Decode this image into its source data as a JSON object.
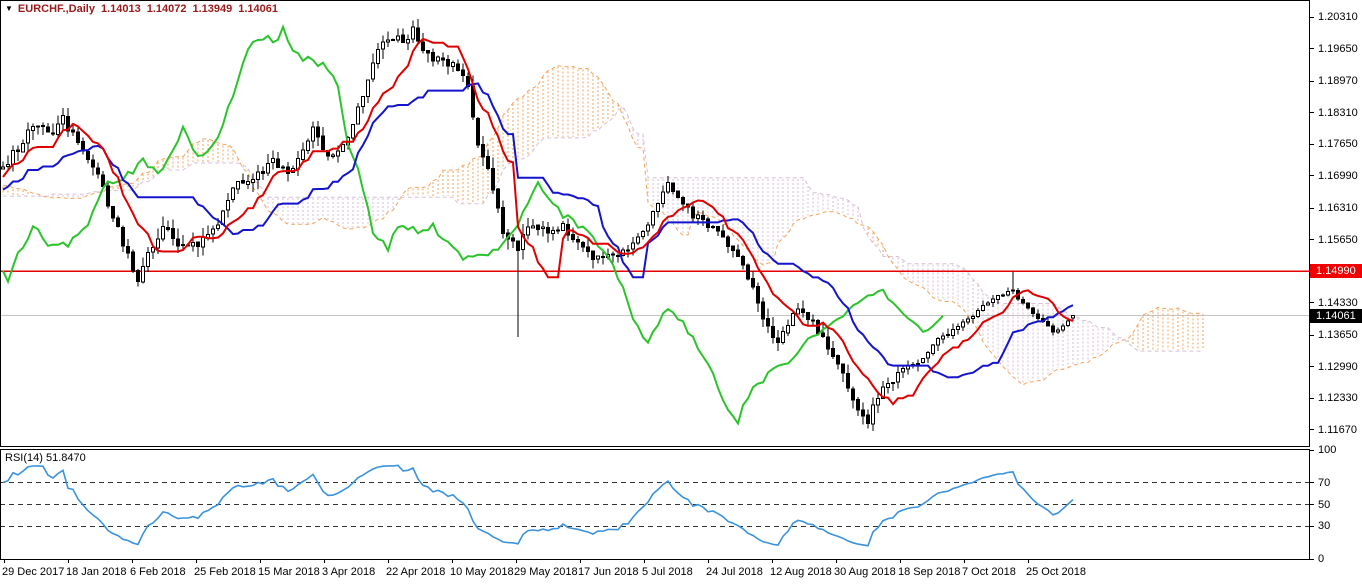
{
  "window": {
    "title": "EURCHF.,Daily",
    "ohlc": {
      "open": "1.14013",
      "high": "1.14072",
      "low": "1.13949",
      "close": "1.14061"
    }
  },
  "rsi": {
    "label": "RSI(14) 51.8470",
    "period": 14,
    "value": 51.847,
    "levels": [
      70,
      50,
      30
    ],
    "scale_labels": [
      "100",
      "70",
      "50",
      "30",
      "0"
    ]
  },
  "price_axis": {
    "labels": [
      "1.20310",
      "1.19650",
      "1.18970",
      "1.18310",
      "1.17650",
      "1.16990",
      "1.16310",
      "1.15650",
      "1.14330",
      "1.13650",
      "1.12990",
      "1.12330",
      "1.11670"
    ],
    "red_level_label": "1.14990",
    "current_price_label": "1.14061"
  },
  "time_axis": {
    "labels": [
      "29 Dec 2017",
      "18 Jan 2018",
      "6 Feb 2018",
      "25 Feb 2018",
      "15 Mar 2018",
      "3 Apr 2018",
      "22 Apr 2018",
      "10 May 2018",
      "29 May 2018",
      "17 Jun 2018",
      "5 Jul 2018",
      "24 Jul 2018",
      "12 Aug 2018",
      "30 Aug 2018",
      "18 Sep 2018",
      "7 Oct 2018",
      "25 Oct 2018"
    ]
  },
  "colors": {
    "header_text": "#9C1A1A",
    "bg": "#FFFFFF",
    "frame": "#000000",
    "grid_line": "#C4C4C4",
    "hline_red": "#E60000",
    "tenkan_red": "#DF0000",
    "kijun_blue": "#1414CC",
    "chikou_green": "#2BC42B",
    "senkou_a": "#F0A45C",
    "senkou_b": "#D8BFD8",
    "rsi_line": "#3A93DC",
    "rsi_level_dash": "#333333",
    "candle_up_fill": "#FFFFFF",
    "candle_down_fill": "#000000",
    "candle_stroke": "#000000",
    "badge_red_bg": "#F00000",
    "badge_black_bg": "#000000",
    "badge_text": "#FFFFFF"
  },
  "chart_data": {
    "type": "candlestick",
    "symbol": "EURCHF.",
    "timeframe": "Daily",
    "indicators": [
      "Ichimoku Kinko Hyo (9,26,52)",
      "RSI(14)"
    ],
    "last_candle": {
      "open": 1.14013,
      "high": 1.14072,
      "low": 1.13949,
      "close": 1.14061
    },
    "hline": 1.1499,
    "current_price": 1.14061,
    "price_ylim": [
      1.11314,
      1.20666
    ],
    "rsi_ylim": [
      0,
      100
    ],
    "bars_visible": 215,
    "ichimoku": {
      "tenkan": 9,
      "kijun": 26,
      "senkou": 52,
      "shift": 26
    },
    "close_anchors": [
      [
        -80,
        1.164
      ],
      [
        -70,
        1.1608
      ],
      [
        -60,
        1.162
      ],
      [
        -50,
        1.1655
      ],
      [
        -40,
        1.17
      ],
      [
        -30,
        1.1672
      ],
      [
        -20,
        1.1628
      ],
      [
        -12,
        1.166
      ],
      [
        -6,
        1.17
      ],
      [
        0,
        1.1722
      ],
      [
        1,
        1.1728
      ],
      [
        6,
        1.1803
      ],
      [
        10,
        1.179
      ],
      [
        12,
        1.1818
      ],
      [
        18,
        1.1722
      ],
      [
        21,
        1.164
      ],
      [
        27,
        1.148
      ],
      [
        29,
        1.1533
      ],
      [
        32,
        1.1585
      ],
      [
        35,
        1.1562
      ],
      [
        39,
        1.1545
      ],
      [
        43,
        1.1605
      ],
      [
        47,
        1.1688
      ],
      [
        51,
        1.17
      ],
      [
        54,
        1.1732
      ],
      [
        57,
        1.17
      ],
      [
        60,
        1.1752
      ],
      [
        62,
        1.1793
      ],
      [
        65,
        1.1742
      ],
      [
        68,
        1.1762
      ],
      [
        71,
        1.1835
      ],
      [
        74,
        1.194
      ],
      [
        77,
        1.1992
      ],
      [
        80,
        1.1983
      ],
      [
        82,
        1.2003
      ],
      [
        85,
        1.1951
      ],
      [
        88,
        1.1941
      ],
      [
        91,
        1.192
      ],
      [
        93,
        1.1878
      ],
      [
        95,
        1.1774
      ],
      [
        98,
        1.168
      ],
      [
        100,
        1.1585
      ],
      [
        103,
        1.1554
      ],
      [
        106,
        1.1596
      ],
      [
        109,
        1.1575
      ],
      [
        112,
        1.1596
      ],
      [
        115,
        1.1554
      ],
      [
        118,
        1.1523
      ],
      [
        121,
        1.1533
      ],
      [
        124,
        1.1543
      ],
      [
        127,
        1.1564
      ],
      [
        130,
        1.1617
      ],
      [
        133,
        1.168
      ],
      [
        135,
        1.1648
      ],
      [
        138,
        1.1617
      ],
      [
        141,
        1.1596
      ],
      [
        144,
        1.1575
      ],
      [
        147,
        1.1523
      ],
      [
        149,
        1.1491
      ],
      [
        152,
        1.1408
      ],
      [
        155,
        1.1345
      ],
      [
        157,
        1.1387
      ],
      [
        159,
        1.1418
      ],
      [
        162,
        1.1387
      ],
      [
        165,
        1.1345
      ],
      [
        168,
        1.1282
      ],
      [
        171,
        1.1213
      ],
      [
        173,
        1.1188
      ],
      [
        175,
        1.124
      ],
      [
        177,
        1.1261
      ],
      [
        180,
        1.1292
      ],
      [
        183,
        1.1309
      ],
      [
        186,
        1.1345
      ],
      [
        189,
        1.1366
      ],
      [
        192,
        1.1387
      ],
      [
        194,
        1.1408
      ],
      [
        197,
        1.1429
      ],
      [
        199,
        1.145
      ],
      [
        202,
        1.1462
      ],
      [
        204,
        1.1429
      ],
      [
        207,
        1.1398
      ],
      [
        210,
        1.1373
      ],
      [
        212,
        1.1381
      ],
      [
        214,
        1.14061
      ]
    ],
    "vol_anchors": [
      [
        -80,
        0.003
      ],
      [
        0,
        0.0035
      ],
      [
        29,
        0.0042
      ],
      [
        60,
        0.0035
      ],
      [
        82,
        0.0038
      ],
      [
        95,
        0.0045
      ],
      [
        103,
        0.0048
      ],
      [
        124,
        0.003
      ],
      [
        141,
        0.0026
      ],
      [
        153,
        0.0038
      ],
      [
        173,
        0.0034
      ],
      [
        191,
        0.0024
      ],
      [
        214,
        0.0016
      ]
    ],
    "wick_events": [
      {
        "bar": 103,
        "low": 1.1362
      },
      {
        "bar": 173,
        "low": 1.117
      },
      {
        "bar": 202,
        "high": 1.1499
      }
    ]
  }
}
